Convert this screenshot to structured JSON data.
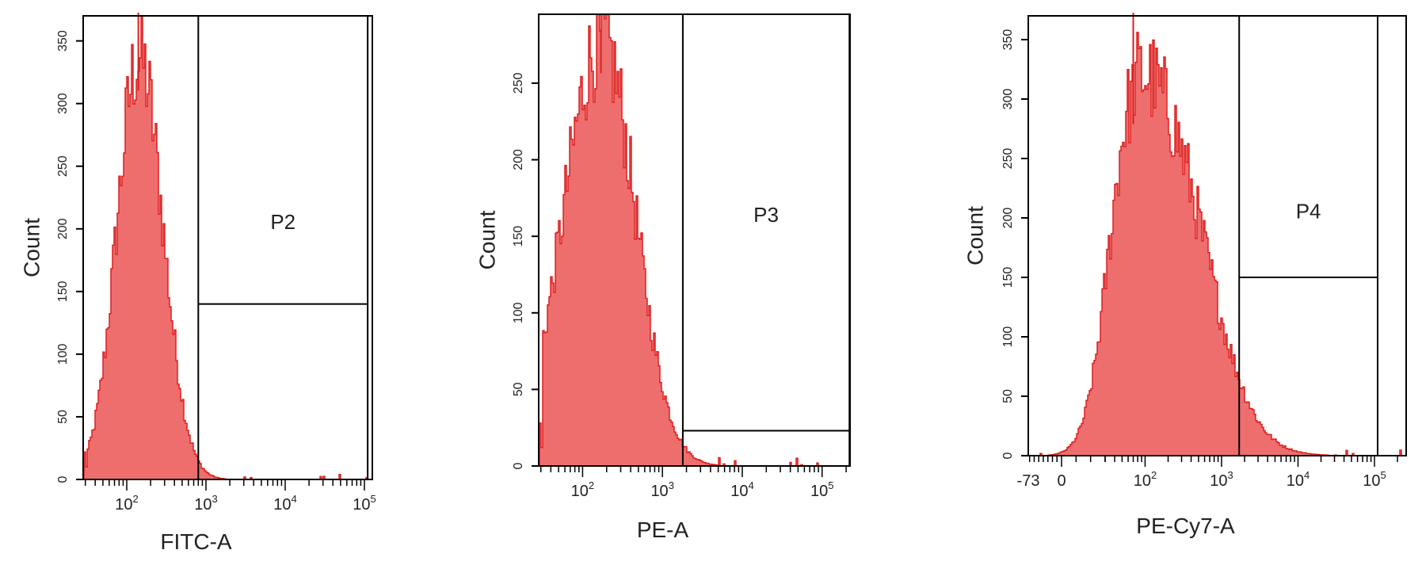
{
  "colors": {
    "histogram_fill": "#ee6e6e",
    "histogram_stroke": "#dd1f1f",
    "axis": "#000000",
    "gate": "#000000"
  },
  "chart_data": [
    {
      "type": "histogram",
      "xlabel": "FITC-A",
      "ylabel": "Count",
      "xscale": "log",
      "xlim_log10": [
        1.45,
        5.1
      ],
      "ylim": [
        0,
        370
      ],
      "y_ticks": [
        0,
        50,
        100,
        150,
        200,
        250,
        300,
        350
      ],
      "y_tick_labels": [
        "0",
        "50",
        "100",
        "150",
        "200",
        "250",
        "300",
        "350"
      ],
      "x_ticks": [
        {
          "value": 100,
          "base": "10",
          "exp": "2"
        },
        {
          "value": 1000,
          "base": "10",
          "exp": "3"
        },
        {
          "value": 10000,
          "base": "10",
          "exp": "4"
        },
        {
          "value": 100000,
          "base": "10",
          "exp": "5"
        }
      ],
      "peak_value": 140,
      "peak_count": 345,
      "width_log10": 0.17,
      "gate": {
        "label": "P2",
        "x_from": 800,
        "x_to": 110000,
        "count_level": 140
      }
    },
    {
      "type": "histogram",
      "xlabel": "PE-A",
      "ylabel": "Count",
      "xscale": "log",
      "xlim_log10": [
        1.45,
        5.35
      ],
      "ylim": [
        0,
        295
      ],
      "y_ticks": [
        0,
        50,
        100,
        150,
        200,
        250
      ],
      "y_tick_labels": [
        "0",
        "50",
        "100",
        "150",
        "200",
        "250"
      ],
      "x_ticks": [
        {
          "value": 100,
          "base": "10",
          "exp": "2"
        },
        {
          "value": 1000,
          "base": "10",
          "exp": "3"
        },
        {
          "value": 10000,
          "base": "10",
          "exp": "4"
        },
        {
          "value": 100000,
          "base": "10",
          "exp": "5"
        }
      ],
      "peak_value": 170,
      "peak_count": 285,
      "width_log10": 0.25,
      "gate": {
        "label": "P3",
        "x_from": 1800,
        "x_to": 220000,
        "count_level": 23
      }
    },
    {
      "type": "histogram",
      "xlabel": "PE-Cy7-A",
      "ylabel": "Count",
      "xscale": "biexponential",
      "ylim": [
        0,
        370
      ],
      "y_ticks": [
        0,
        50,
        100,
        150,
        200,
        250,
        300,
        350
      ],
      "y_tick_labels": [
        "0",
        "50",
        "100",
        "150",
        "200",
        "250",
        "300",
        "350"
      ],
      "x_ticks": [
        {
          "value": -73,
          "label": "-73"
        },
        {
          "value": 0,
          "label": "0"
        },
        {
          "value": 100,
          "base": "10",
          "exp": "2"
        },
        {
          "value": 1000,
          "base": "10",
          "exp": "3"
        },
        {
          "value": 10000,
          "base": "10",
          "exp": "4"
        },
        {
          "value": 100000,
          "base": "10",
          "exp": "5"
        }
      ],
      "peak_value": 70,
      "peak_count": 310,
      "gate": {
        "label": "P4",
        "x_from": 1700,
        "x_to": 110000,
        "count_level": 150
      }
    }
  ]
}
